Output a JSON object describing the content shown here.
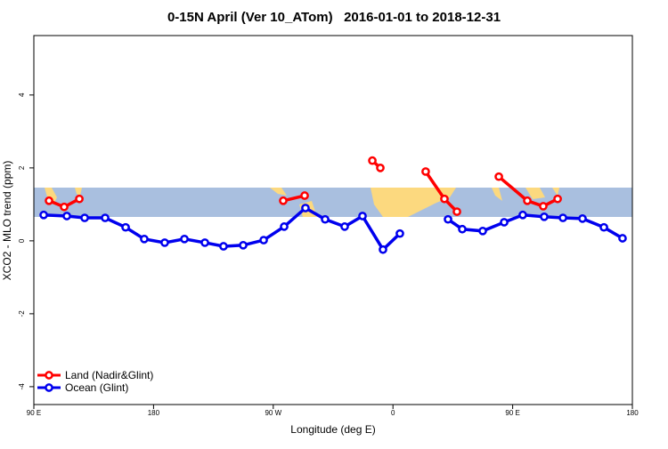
{
  "chart_data": {
    "type": "line",
    "title": "0-15N April (Ver 10_ATom)   2016-01-01 to 2018-12-31",
    "x_label": "Longitude (deg E)",
    "y_label": "XCO2 - MLO trend (ppm)",
    "xlim": [
      90,
      540
    ],
    "xticks": [
      {
        "value": 90,
        "label": "90 E"
      },
      180,
      {
        "value": 270,
        "label": "90 W"
      },
      {
        "value": 360,
        "label": "0"
      },
      {
        "value": 450,
        "label": "90 E"
      },
      180
    ],
    "ylim": [
      -4.49,
      5.63
    ],
    "yticks": [
      -4,
      -2,
      0,
      2,
      4
    ],
    "legend": "bottom-left",
    "series": [
      {
        "name": "Land (Nadir&Glint)",
        "color": "#ff0000",
        "x": [
          101.4,
          112.8,
          124.2,
          null,
          277.5,
          293.6,
          null,
          344.5,
          350.5,
          null,
          384.6,
          398.7,
          408.1,
          null,
          439.6,
          461,
          473,
          483.8
        ],
        "values": [
          1.1,
          0.93,
          1.15,
          null,
          1.1,
          1.24,
          null,
          2.2,
          2.0,
          null,
          1.9,
          1.15,
          0.8,
          null,
          1.76,
          1.1,
          0.95,
          1.15
        ]
      },
      {
        "name": "Ocean (Glint)",
        "color": "#0000ee",
        "x": [
          97.4,
          114.8,
          128.2,
          143.6,
          159,
          173,
          188.4,
          203.2,
          218.6,
          232.6,
          247.4,
          262.8,
          278.2,
          294.2,
          309,
          323.7,
          337.1,
          352.5,
          365.2,
          null,
          401.4,
          412.1,
          427.5,
          443.6,
          457.6,
          473.7,
          487.8,
          502.5,
          518.6,
          532.6
        ],
        "values": [
          0.71,
          0.68,
          0.63,
          0.63,
          0.37,
          0.05,
          -0.05,
          0.05,
          -0.05,
          -0.15,
          -0.12,
          0.02,
          0.39,
          0.9,
          0.59,
          0.39,
          0.68,
          -0.24,
          0.2,
          null,
          0.59,
          0.32,
          0.27,
          0.51,
          0.71,
          0.66,
          0.63,
          0.61,
          0.37,
          0.07
        ]
      }
    ]
  }
}
